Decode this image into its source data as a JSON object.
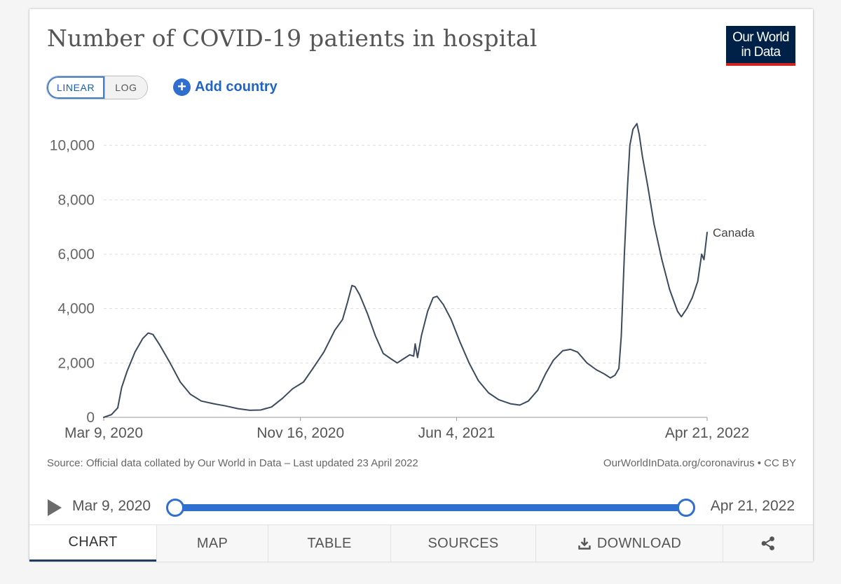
{
  "header": {
    "title": "Number of COVID-19 patients in hospital",
    "logo_line1": "Our World",
    "logo_line2": "in Data"
  },
  "controls": {
    "linear_label": "LINEAR",
    "log_label": "LOG",
    "active_scale": "linear",
    "add_country_label": "Add country"
  },
  "footer": {
    "source": "Source: Official data collated by Our World in Data – Last updated 23 April 2022",
    "license": "OurWorldInData.org/coronavirus • CC BY"
  },
  "timeline": {
    "start_label": "Mar 9, 2020",
    "end_label": "Apr 21, 2022"
  },
  "tabs": [
    {
      "label": "CHART",
      "active": true
    },
    {
      "label": "MAP"
    },
    {
      "label": "TABLE"
    },
    {
      "label": "SOURCES"
    },
    {
      "label": "DOWNLOAD",
      "icon": "download-icon"
    },
    {
      "label": "",
      "icon": "share-icon"
    }
  ],
  "colors": {
    "line": "#3b4a5c",
    "accent": "#2e6fd0",
    "logo_bg": "#002147",
    "logo_bar": "#ce261e"
  },
  "chart_data": {
    "type": "line",
    "title": "Number of COVID-19 patients in hospital",
    "xlabel": "",
    "ylabel": "",
    "xlim": [
      "2020-03-09",
      "2022-04-21"
    ],
    "ylim": [
      0,
      10000
    ],
    "yticks": [
      0,
      2000,
      4000,
      6000,
      8000,
      10000
    ],
    "ytick_labels": [
      "0",
      "2,000",
      "4,000",
      "6,000",
      "8,000",
      "10,000"
    ],
    "xticks": [
      "2020-03-09",
      "2020-11-16",
      "2021-06-04",
      "2022-04-21"
    ],
    "xtick_labels": [
      "Mar 9, 2020",
      "Nov 16, 2020",
      "Jun 4, 2021",
      "Apr 21, 2022"
    ],
    "grid": "horizontal dashed",
    "series": [
      {
        "name": "Canada",
        "color": "#3b4a5c",
        "points": [
          [
            "2020-03-09",
            0
          ],
          [
            "2020-03-19",
            100
          ],
          [
            "2020-03-27",
            350
          ],
          [
            "2020-04-01",
            1100
          ],
          [
            "2020-04-08",
            1700
          ],
          [
            "2020-04-18",
            2400
          ],
          [
            "2020-04-28",
            2900
          ],
          [
            "2020-05-05",
            3100
          ],
          [
            "2020-05-11",
            3050
          ],
          [
            "2020-05-20",
            2650
          ],
          [
            "2020-06-02",
            2000
          ],
          [
            "2020-06-15",
            1300
          ],
          [
            "2020-06-28",
            850
          ],
          [
            "2020-07-12",
            600
          ],
          [
            "2020-07-28",
            500
          ],
          [
            "2020-08-12",
            420
          ],
          [
            "2020-08-28",
            320
          ],
          [
            "2020-09-12",
            260
          ],
          [
            "2020-09-26",
            270
          ],
          [
            "2020-10-10",
            380
          ],
          [
            "2020-10-24",
            700
          ],
          [
            "2020-11-06",
            1050
          ],
          [
            "2020-11-20",
            1300
          ],
          [
            "2020-12-02",
            1800
          ],
          [
            "2020-12-16",
            2400
          ],
          [
            "2020-12-30",
            3200
          ],
          [
            "2021-01-09",
            3600
          ],
          [
            "2021-01-15",
            4200
          ],
          [
            "2021-01-21",
            4850
          ],
          [
            "2021-01-25",
            4800
          ],
          [
            "2021-01-31",
            4500
          ],
          [
            "2021-02-10",
            3800
          ],
          [
            "2021-02-20",
            3000
          ],
          [
            "2021-03-02",
            2350
          ],
          [
            "2021-03-12",
            2150
          ],
          [
            "2021-03-20",
            2000
          ],
          [
            "2021-03-28",
            2150
          ],
          [
            "2021-04-05",
            2300
          ],
          [
            "2021-04-10",
            2250
          ],
          [
            "2021-04-12",
            2700
          ],
          [
            "2021-04-15",
            2200
          ],
          [
            "2021-04-20",
            3000
          ],
          [
            "2021-04-28",
            3900
          ],
          [
            "2021-05-05",
            4400
          ],
          [
            "2021-05-10",
            4450
          ],
          [
            "2021-05-18",
            4150
          ],
          [
            "2021-05-28",
            3600
          ],
          [
            "2021-06-08",
            2800
          ],
          [
            "2021-06-20",
            2000
          ],
          [
            "2021-07-02",
            1350
          ],
          [
            "2021-07-15",
            900
          ],
          [
            "2021-07-28",
            650
          ],
          [
            "2021-08-12",
            500
          ],
          [
            "2021-08-24",
            450
          ],
          [
            "2021-09-04",
            600
          ],
          [
            "2021-09-16",
            1000
          ],
          [
            "2021-09-26",
            1600
          ],
          [
            "2021-10-06",
            2100
          ],
          [
            "2021-10-18",
            2450
          ],
          [
            "2021-10-28",
            2500
          ],
          [
            "2021-11-06",
            2400
          ],
          [
            "2021-11-18",
            2000
          ],
          [
            "2021-11-30",
            1750
          ],
          [
            "2021-12-10",
            1600
          ],
          [
            "2021-12-18",
            1450
          ],
          [
            "2021-12-24",
            1550
          ],
          [
            "2021-12-29",
            1800
          ],
          [
            "2022-01-01",
            3000
          ],
          [
            "2022-01-05",
            6000
          ],
          [
            "2022-01-09",
            8500
          ],
          [
            "2022-01-12",
            10000
          ],
          [
            "2022-01-16",
            10600
          ],
          [
            "2022-01-21",
            10800
          ],
          [
            "2022-01-24",
            10400
          ],
          [
            "2022-01-28",
            9600
          ],
          [
            "2022-02-04",
            8500
          ],
          [
            "2022-02-12",
            7100
          ],
          [
            "2022-02-22",
            5800
          ],
          [
            "2022-03-04",
            4700
          ],
          [
            "2022-03-14",
            3900
          ],
          [
            "2022-03-19",
            3700
          ],
          [
            "2022-03-26",
            4000
          ],
          [
            "2022-04-02",
            4400
          ],
          [
            "2022-04-09",
            5000
          ],
          [
            "2022-04-14",
            6000
          ],
          [
            "2022-04-17",
            5800
          ],
          [
            "2022-04-21",
            6800
          ]
        ]
      }
    ]
  }
}
